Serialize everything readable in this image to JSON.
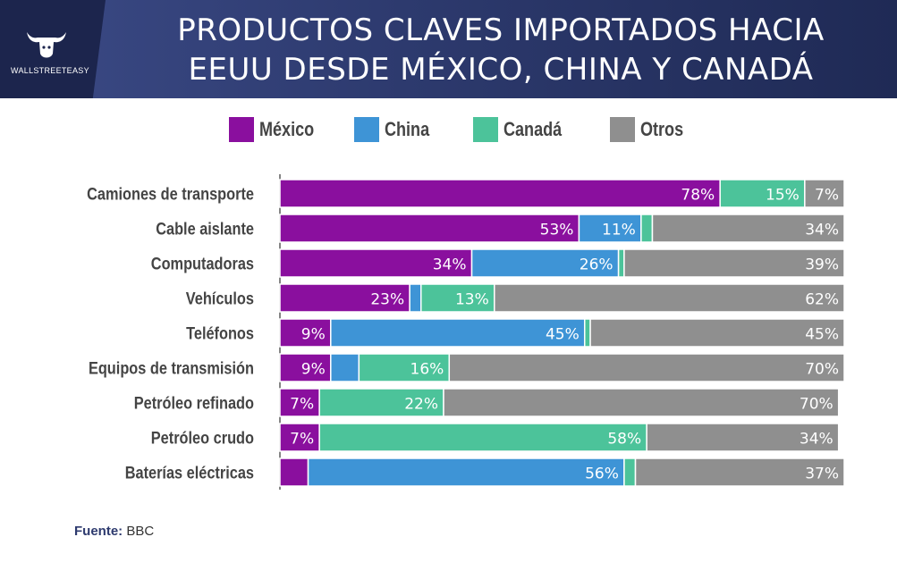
{
  "header": {
    "brand_name": "WALLSTREETEASY",
    "title_line1": "PRODUCTOS CLAVES IMPORTADOS HACIA",
    "title_line2": "EEUU DESDE MÉXICO, CHINA Y CANADÁ"
  },
  "colors": {
    "mexico": "#8a0f9e",
    "china": "#3e94d6",
    "canada": "#4cc39a",
    "otros": "#8f8f8f",
    "header_bg": "#2d3a6e"
  },
  "legend": [
    {
      "name": "México",
      "color": "#8a0f9e"
    },
    {
      "name": "China",
      "color": "#3e94d6"
    },
    {
      "name": "Canadá",
      "color": "#4cc39a"
    },
    {
      "name": "Otros",
      "color": "#8f8f8f"
    }
  ],
  "chart_data": {
    "type": "bar",
    "orientation": "horizontal",
    "stacked": true,
    "title": "PRODUCTOS CLAVES IMPORTADOS HACIA EEUU DESDE MÉXICO, CHINA Y CANADÁ",
    "unit": "%",
    "xlim": [
      0,
      100
    ],
    "legend_position": "top",
    "categories": [
      "Camiones de transporte",
      "Cable aislante",
      "Computadoras",
      "Vehículos",
      "Teléfonos",
      "Equipos de transmisión",
      "Petróleo refinado",
      "Petróleo crudo",
      "Baterías eléctricas"
    ],
    "series": [
      {
        "name": "México",
        "values": [
          78,
          53,
          34,
          23,
          9,
          9,
          7,
          7,
          5
        ]
      },
      {
        "name": "China",
        "values": [
          0,
          11,
          26,
          2,
          45,
          5,
          0,
          0,
          56
        ]
      },
      {
        "name": "Canadá",
        "values": [
          15,
          2,
          1,
          13,
          1,
          16,
          22,
          58,
          2
        ]
      },
      {
        "name": "Otros",
        "values": [
          7,
          34,
          39,
          62,
          45,
          70,
          70,
          34,
          37
        ]
      }
    ],
    "data_labels": [
      [
        "78%",
        "",
        "15%",
        "7%"
      ],
      [
        "53%",
        "11%",
        "",
        "34%"
      ],
      [
        "34%",
        "26%",
        "",
        "39%"
      ],
      [
        "23%",
        "",
        "13%",
        "62%"
      ],
      [
        "9%",
        "45%",
        "",
        "45%"
      ],
      [
        "9%",
        "",
        "16%",
        "70%"
      ],
      [
        "7%",
        "",
        "22%",
        "70%"
      ],
      [
        "7%",
        "",
        "58%",
        "34%"
      ],
      [
        "",
        "56%",
        "",
        "37%"
      ]
    ]
  },
  "source": {
    "label": "Fuente:",
    "value": "BBC"
  }
}
